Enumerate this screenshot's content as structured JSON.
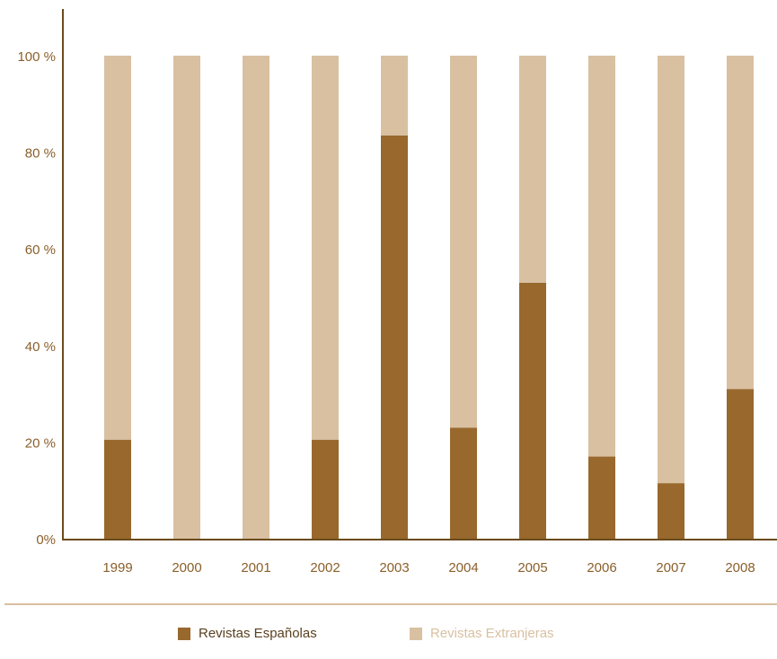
{
  "chart_data": {
    "type": "bar",
    "stacked": true,
    "percent_stacked": true,
    "categories": [
      "1999",
      "2000",
      "2001",
      "2002",
      "2003",
      "2004",
      "2005",
      "2006",
      "2007",
      "2008"
    ],
    "series": [
      {
        "name": "Revistas Españolas",
        "color": "#98682d",
        "values": [
          20.5,
          0,
          0,
          20.5,
          83.5,
          23,
          53,
          17,
          11.5,
          31
        ]
      },
      {
        "name": "Revistas Extranjeras",
        "color": "#d9c0a1",
        "values": [
          79.5,
          100,
          100,
          79.5,
          16.5,
          77,
          47,
          83,
          88.5,
          69
        ]
      }
    ],
    "yticks": [
      "0%",
      "20 %",
      "40 %",
      "60 %",
      "80 %",
      "100 %"
    ],
    "ylim": [
      0,
      100
    ],
    "grid": false,
    "legend_position": "bottom",
    "axis_color": "#6b4a1c",
    "label_color": "#8a5f2a"
  }
}
